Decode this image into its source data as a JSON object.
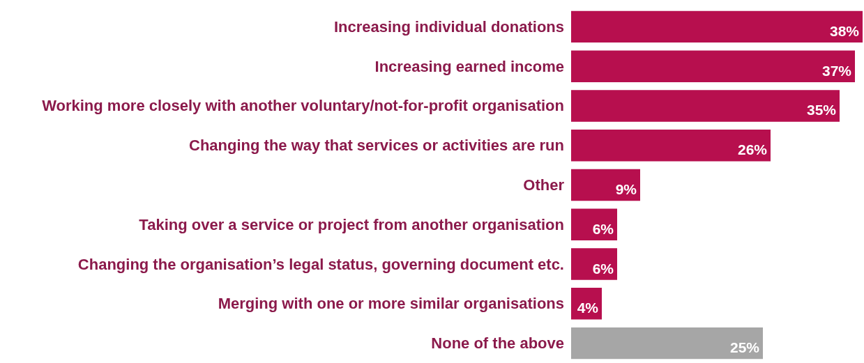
{
  "chart_data": {
    "type": "bar",
    "orientation": "horizontal",
    "categories": [
      "Increasing individual donations",
      "Increasing earned income",
      "Working more closely with another voluntary/not-for-profit organisation",
      "Changing the way that services or activities are run",
      "Other",
      "Taking over a service or project from another organisation",
      "Changing the organisation’s legal status, governing document etc.",
      "Merging with one or more similar organisations",
      "None of the above"
    ],
    "values": [
      38,
      37,
      35,
      26,
      9,
      6,
      6,
      4,
      25
    ],
    "value_labels": [
      "38%",
      "37%",
      "35%",
      "26%",
      "9%",
      "6%",
      "6%",
      "4%",
      "25%"
    ],
    "colors": [
      "#b70f4e",
      "#b70f4e",
      "#b70f4e",
      "#b70f4e",
      "#b70f4e",
      "#b70f4e",
      "#b70f4e",
      "#b70f4e",
      "#a6a6a6"
    ]
  }
}
